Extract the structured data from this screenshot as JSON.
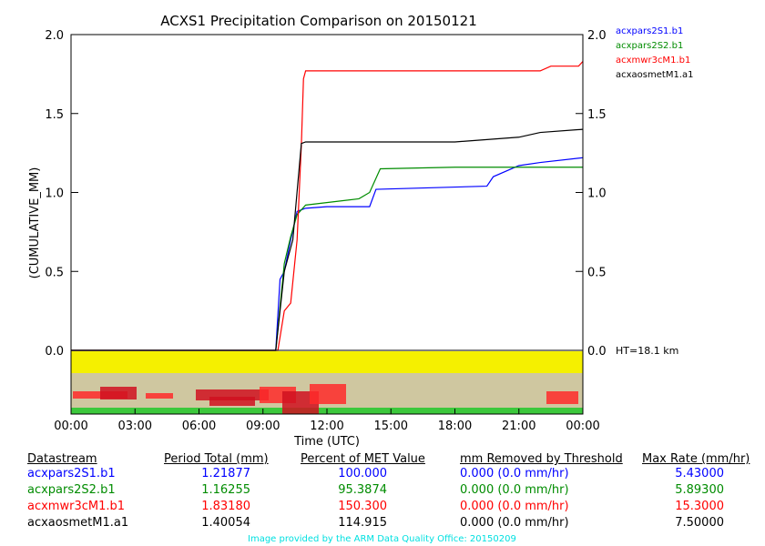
{
  "chart_data": {
    "type": "line",
    "title": "ACXS1 Precipitation Comparison on 20150121",
    "xlabel": "Time (UTC)",
    "ylabel": "(CUMULATIVE_MM)",
    "xlim": [
      0,
      24
    ],
    "ylim": [
      0,
      2.0
    ],
    "x_ticks": [
      "00:00",
      "03:00",
      "06:00",
      "09:00",
      "12:00",
      "15:00",
      "18:00",
      "21:00",
      "00:00"
    ],
    "y_ticks": [
      "0.0",
      "0.5",
      "1.0",
      "1.5",
      "2.0"
    ],
    "height_label": "HT=18.1 km",
    "legend": "top-right",
    "series": [
      {
        "name": "acxpars2S1.b1",
        "color": "#0000ff",
        "x": [
          0,
          9.6,
          9.8,
          10.0,
          10.3,
          10.6,
          11,
          12,
          14,
          14.3,
          19.5,
          19.8,
          21,
          22,
          24
        ],
        "y": [
          0,
          0,
          0.45,
          0.5,
          0.7,
          0.88,
          0.9,
          0.91,
          0.91,
          1.02,
          1.04,
          1.1,
          1.17,
          1.19,
          1.22
        ]
      },
      {
        "name": "acxpars2S2.b1",
        "color": "#008c00",
        "x": [
          0,
          9.6,
          10,
          10.3,
          10.6,
          11,
          13.5,
          14,
          14.5,
          18,
          24
        ],
        "y": [
          0,
          0,
          0.55,
          0.72,
          0.86,
          0.92,
          0.96,
          1.0,
          1.15,
          1.16,
          1.16
        ]
      },
      {
        "name": "acxmwr3cM1.b1",
        "color": "#ff0000",
        "x": [
          0,
          9.7,
          10,
          10.3,
          10.6,
          10.8,
          10.9,
          11,
          22,
          22.5,
          23.8,
          24
        ],
        "y": [
          0,
          0,
          0.25,
          0.3,
          0.7,
          1.3,
          1.72,
          1.77,
          1.77,
          1.8,
          1.8,
          1.83
        ]
      },
      {
        "name": "acxaosmetM1.a1",
        "color": "#000000",
        "x": [
          0,
          9.6,
          10,
          10.4,
          10.8,
          11,
          18,
          21,
          22,
          24
        ],
        "y": [
          0,
          0,
          0.5,
          0.7,
          1.31,
          1.32,
          1.32,
          1.35,
          1.38,
          1.4
        ]
      }
    ]
  },
  "table": {
    "headers": [
      "Datastream",
      "Period Total (mm)",
      "Percent of MET Value",
      "mm Removed by Threshold",
      "Max Rate (mm/hr)"
    ],
    "rows": [
      {
        "color": "#0000ff",
        "cells": [
          "acxpars2S1.b1",
          "1.21877",
          "100.000",
          "0.000 (0.0 mm/hr)",
          "5.43000"
        ]
      },
      {
        "color": "#008c00",
        "cells": [
          "acxpars2S2.b1",
          "1.16255",
          "95.3874",
          "0.000 (0.0 mm/hr)",
          "5.89300"
        ]
      },
      {
        "color": "#ff0000",
        "cells": [
          "acxmwr3cM1.b1",
          "1.83180",
          "150.300",
          "0.000 (0.0 mm/hr)",
          "15.3000"
        ]
      },
      {
        "color": "#000000",
        "cells": [
          "acxaosmetM1.a1",
          "1.40054",
          "114.915",
          "0.000 (0.0 mm/hr)",
          "7.50000"
        ]
      }
    ]
  },
  "credit": "Image provided by the ARM Data Quality Office: 20150209"
}
